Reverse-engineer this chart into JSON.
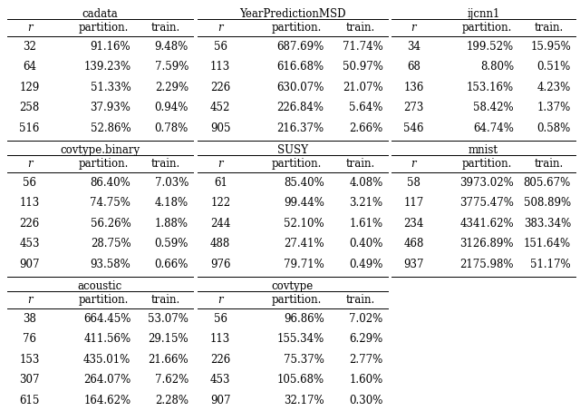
{
  "tables": [
    {
      "title": "cadata",
      "rows": [
        [
          "32",
          "91.16%",
          "9.48%"
        ],
        [
          "64",
          "139.23%",
          "7.59%"
        ],
        [
          "129",
          "51.33%",
          "2.29%"
        ],
        [
          "258",
          "37.93%",
          "0.94%"
        ],
        [
          "516",
          "52.86%",
          "0.78%"
        ]
      ],
      "group": 0,
      "col": 0
    },
    {
      "title": "YearPredictionMSD",
      "rows": [
        [
          "56",
          "687.69%",
          "71.74%"
        ],
        [
          "113",
          "616.68%",
          "50.97%"
        ],
        [
          "226",
          "630.07%",
          "21.07%"
        ],
        [
          "452",
          "226.84%",
          "5.64%"
        ],
        [
          "905",
          "216.37%",
          "2.66%"
        ]
      ],
      "group": 0,
      "col": 1
    },
    {
      "title": "ijcnn1",
      "rows": [
        [
          "34",
          "199.52%",
          "15.95%"
        ],
        [
          "68",
          "8.80%",
          "0.51%"
        ],
        [
          "136",
          "153.16%",
          "4.23%"
        ],
        [
          "273",
          "58.42%",
          "1.37%"
        ],
        [
          "546",
          "64.74%",
          "0.58%"
        ]
      ],
      "group": 0,
      "col": 2
    },
    {
      "title": "covtype.binary",
      "rows": [
        [
          "56",
          "86.40%",
          "7.03%"
        ],
        [
          "113",
          "74.75%",
          "4.18%"
        ],
        [
          "226",
          "56.26%",
          "1.88%"
        ],
        [
          "453",
          "28.75%",
          "0.59%"
        ],
        [
          "907",
          "93.58%",
          "0.66%"
        ]
      ],
      "group": 1,
      "col": 0
    },
    {
      "title": "SUSY",
      "rows": [
        [
          "61",
          "85.40%",
          "4.08%"
        ],
        [
          "122",
          "99.44%",
          "3.21%"
        ],
        [
          "244",
          "52.10%",
          "1.61%"
        ],
        [
          "488",
          "27.41%",
          "0.40%"
        ],
        [
          "976",
          "79.71%",
          "0.49%"
        ]
      ],
      "group": 1,
      "col": 1
    },
    {
      "title": "mnist",
      "rows": [
        [
          "58",
          "3973.02%",
          "805.67%"
        ],
        [
          "117",
          "3775.47%",
          "508.89%"
        ],
        [
          "234",
          "4341.62%",
          "383.34%"
        ],
        [
          "468",
          "3126.89%",
          "151.64%"
        ],
        [
          "937",
          "2175.98%",
          "51.17%"
        ]
      ],
      "group": 1,
      "col": 2
    },
    {
      "title": "acoustic",
      "rows": [
        [
          "38",
          "664.45%",
          "53.07%"
        ],
        [
          "76",
          "411.56%",
          "29.15%"
        ],
        [
          "153",
          "435.01%",
          "21.66%"
        ],
        [
          "307",
          "264.07%",
          "7.62%"
        ],
        [
          "615",
          "164.62%",
          "2.28%"
        ]
      ],
      "group": 2,
      "col": 0
    },
    {
      "title": "covtype",
      "rows": [
        [
          "56",
          "96.86%",
          "7.02%"
        ],
        [
          "113",
          "155.34%",
          "6.29%"
        ],
        [
          "226",
          "75.37%",
          "2.77%"
        ],
        [
          "453",
          "105.68%",
          "1.60%"
        ],
        [
          "907",
          "32.17%",
          "0.30%"
        ]
      ],
      "group": 2,
      "col": 1
    }
  ],
  "col_headers": [
    "r",
    "partition.",
    "train."
  ],
  "fontsize": 8.5,
  "bg_color": "white"
}
